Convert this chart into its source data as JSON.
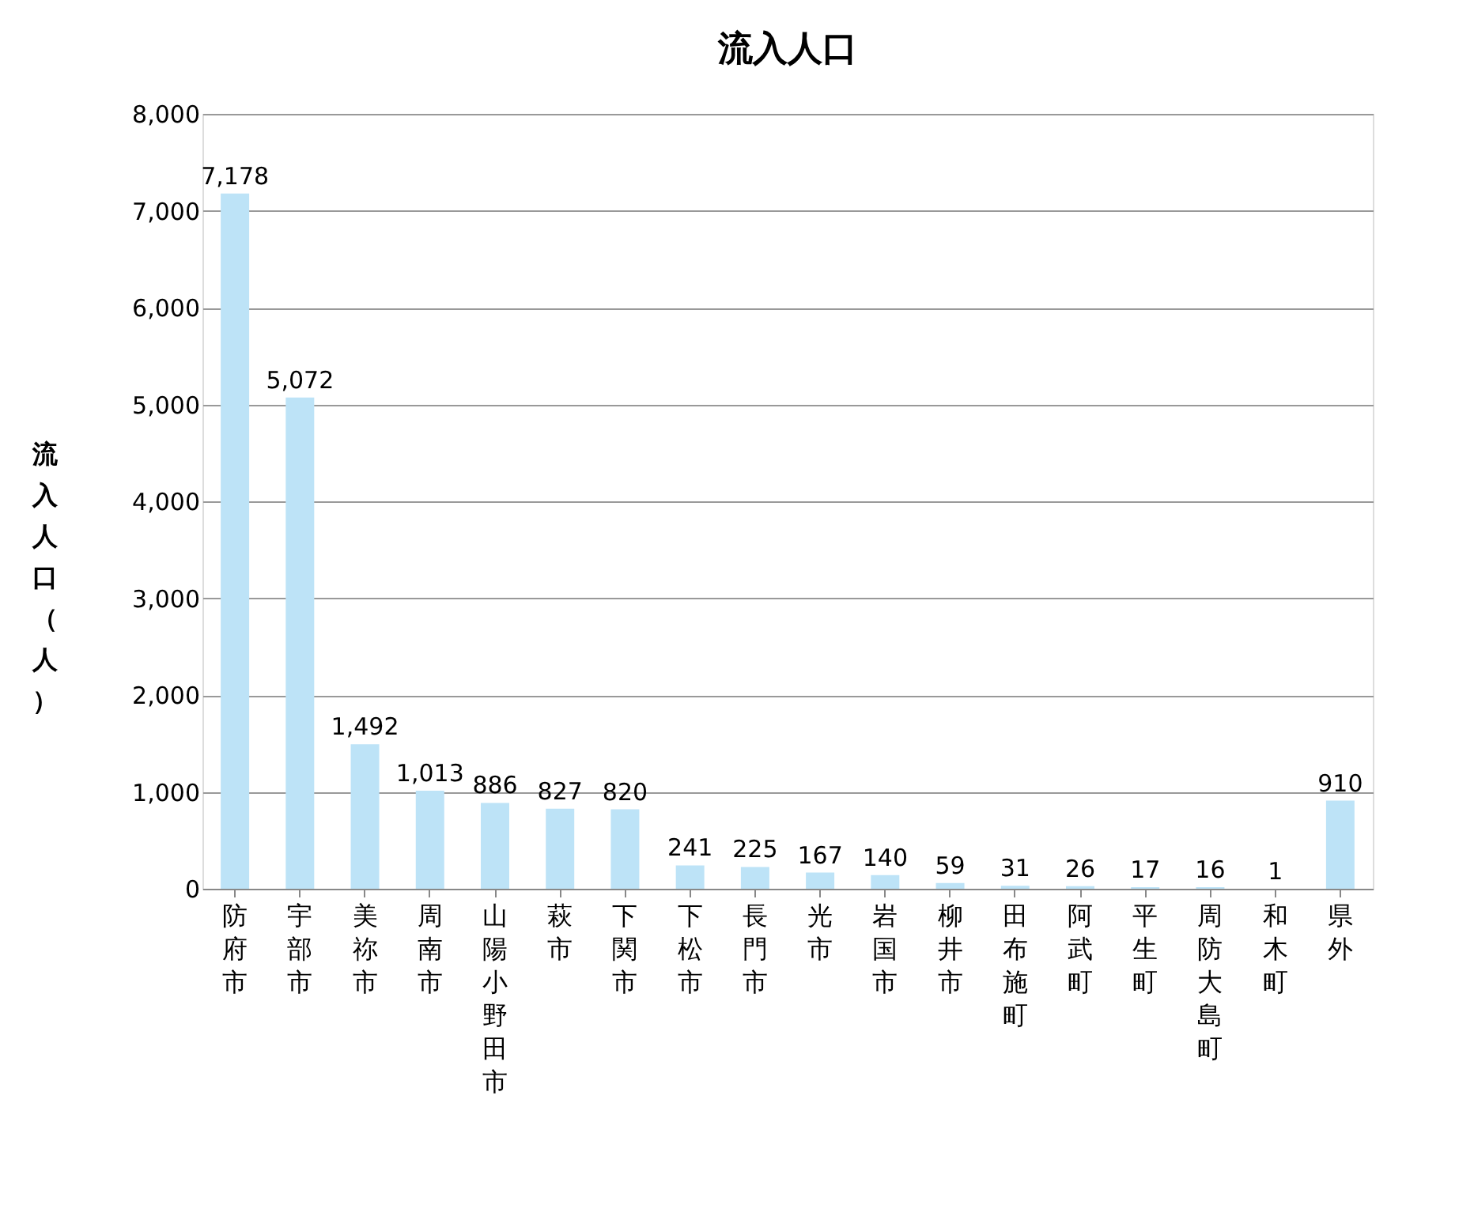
{
  "chart_data": {
    "type": "bar",
    "title": "流入人口",
    "ylabel": "流入人口（人）",
    "categories": [
      "防府市",
      "宇部市",
      "美祢市",
      "周南市",
      "山陽小野田市",
      "萩市",
      "下関市",
      "下松市",
      "長門市",
      "光市",
      "岩国市",
      "柳井市",
      "田布施町",
      "阿武町",
      "平生町",
      "周防大島町",
      "和木町",
      "県外"
    ],
    "values": [
      7178,
      5072,
      1492,
      1013,
      886,
      827,
      820,
      241,
      225,
      167,
      140,
      59,
      31,
      26,
      17,
      16,
      1,
      910
    ],
    "color": "#bde3f7",
    "ylim": [
      0,
      8000
    ],
    "yticks": [
      {
        "value": 0,
        "label": "0"
      },
      {
        "value": 1000,
        "label": "1,000"
      },
      {
        "value": 2000,
        "label": "2,000"
      },
      {
        "value": 3000,
        "label": "3,000"
      },
      {
        "value": 4000,
        "label": "4,000"
      },
      {
        "value": 5000,
        "label": "5,000"
      },
      {
        "value": 6000,
        "label": "6,000"
      },
      {
        "value": 7000,
        "label": "7,000"
      },
      {
        "value": 8000,
        "label": "8,000"
      }
    ],
    "value_labels": [
      "7,178",
      "5,072",
      "1,492",
      "1,013",
      "886",
      "827",
      "820",
      "241",
      "225",
      "167",
      "140",
      "59",
      "31",
      "26",
      "17",
      "16",
      "1",
      "910"
    ],
    "grid": "y"
  }
}
